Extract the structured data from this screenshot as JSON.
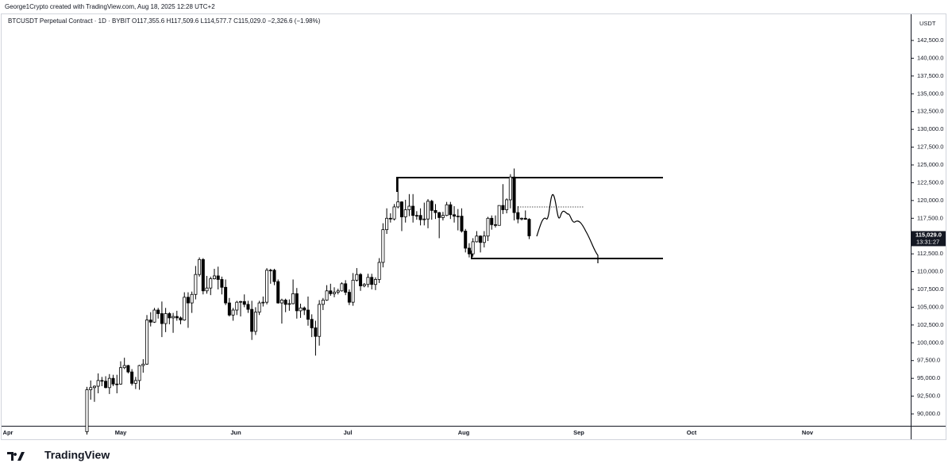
{
  "header": {
    "credit": "George1Crypto created with TradingView.com, Aug 18, 2025 12:28 UTC+2",
    "symbol": "BTCUSDT Perpetual Contract · 1D · BYBIT",
    "ohlc": "O117,355.6 H117,509.6 L114,577.7 C115,029.0 −2,326.6 (−1.98%)"
  },
  "chart_data": {
    "type": "candlestick",
    "y_axis_unit": "USDT",
    "ylim": [
      88330,
      146177
    ],
    "yticks": [
      {
        "value": 90000,
        "label": "90,000.0"
      },
      {
        "value": 92500,
        "label": "92,500.0"
      },
      {
        "value": 95000,
        "label": "95,000.0"
      },
      {
        "value": 97500,
        "label": "97,500.0"
      },
      {
        "value": 100000,
        "label": "100,000.0"
      },
      {
        "value": 102500,
        "label": "102,500.0"
      },
      {
        "value": 105000,
        "label": "105,000.0"
      },
      {
        "value": 107500,
        "label": "107,500.0"
      },
      {
        "value": 110000,
        "label": "110,000.0"
      },
      {
        "value": 112500,
        "label": "112,500.0"
      },
      {
        "value": 117500,
        "label": "117,500.0"
      },
      {
        "value": 120000,
        "label": "120,000.0"
      },
      {
        "value": 122500,
        "label": "122,500.0"
      },
      {
        "value": 125000,
        "label": "125,000.0"
      },
      {
        "value": 127500,
        "label": "127,500.0"
      },
      {
        "value": 130000,
        "label": "130,000.0"
      },
      {
        "value": 132500,
        "label": "132,500.0"
      },
      {
        "value": 135000,
        "label": "135,000.0"
      },
      {
        "value": 137500,
        "label": "137,500.0"
      },
      {
        "value": 140000,
        "label": "140,000.0"
      },
      {
        "value": 142500,
        "label": "142,500.0"
      }
    ],
    "x_labels": [
      "Apr",
      "May",
      "Jun",
      "Jul",
      "Aug",
      "Sep",
      "Oct",
      "Nov"
    ],
    "last_price": {
      "value": 115029.0,
      "label": "115,029.0"
    },
    "countdown": "13:31:27",
    "up_color": "#ffffff",
    "down_color": "#000000",
    "outline_color": "#000000",
    "candles": [
      [
        87500,
        93800,
        87100,
        93400
      ],
      [
        93400,
        94700,
        92000,
        93700
      ],
      [
        93700,
        94000,
        91700,
        93900
      ],
      [
        93900,
        95700,
        92900,
        94700
      ],
      [
        94700,
        95200,
        93900,
        94600
      ],
      [
        94600,
        95300,
        93600,
        93700
      ],
      [
        93700,
        95600,
        92800,
        95000
      ],
      [
        95000,
        95500,
        93900,
        94200
      ],
      [
        94200,
        95500,
        92900,
        94200
      ],
      [
        94200,
        97400,
        94100,
        96500
      ],
      [
        96500,
        97900,
        96300,
        96800
      ],
      [
        96800,
        96900,
        95700,
        95900
      ],
      [
        95900,
        96300,
        94000,
        94300
      ],
      [
        94300,
        95200,
        93500,
        94700
      ],
      [
        94700,
        96900,
        93400,
        96800
      ],
      [
        96800,
        97700,
        95800,
        97000
      ],
      [
        97000,
        103900,
        96900,
        103200
      ],
      [
        103200,
        104300,
        102300,
        102900
      ],
      [
        102900,
        104900,
        102800,
        104600
      ],
      [
        104600,
        104900,
        103400,
        104100
      ],
      [
        104100,
        105800,
        100800,
        102700
      ],
      [
        102700,
        104900,
        101500,
        104100
      ],
      [
        104100,
        104300,
        102600,
        103500
      ],
      [
        103500,
        104200,
        101400,
        103700
      ],
      [
        103700,
        104500,
        103100,
        103500
      ],
      [
        103500,
        103700,
        102600,
        103200
      ],
      [
        103200,
        107100,
        103100,
        106400
      ],
      [
        106400,
        107100,
        102100,
        105600
      ],
      [
        105600,
        107200,
        104200,
        106800
      ],
      [
        106800,
        110800,
        106100,
        109600
      ],
      [
        109600,
        112000,
        109300,
        111700
      ],
      [
        111700,
        111900,
        106800,
        107300
      ],
      [
        107300,
        109400,
        106900,
        107700
      ],
      [
        107700,
        109300,
        106700,
        109000
      ],
      [
        109000,
        110400,
        108900,
        109400
      ],
      [
        109400,
        110700,
        107500,
        108900
      ],
      [
        108900,
        109300,
        106800,
        107800
      ],
      [
        107800,
        108900,
        105300,
        105600
      ],
      [
        105600,
        106300,
        103700,
        103900
      ],
      [
        103900,
        104900,
        103100,
        104600
      ],
      [
        104600,
        105900,
        103900,
        105700
      ],
      [
        105700,
        105900,
        103700,
        105800
      ],
      [
        105800,
        106800,
        105000,
        105400
      ],
      [
        105400,
        105900,
        104200,
        104700
      ],
      [
        104700,
        105900,
        100400,
        101600
      ],
      [
        101600,
        105000,
        101100,
        104300
      ],
      [
        104300,
        105900,
        103900,
        105600
      ],
      [
        105600,
        106500,
        105100,
        105700
      ],
      [
        105700,
        110500,
        105400,
        110200
      ],
      [
        110200,
        110400,
        108300,
        110200
      ],
      [
        110200,
        110400,
        108100,
        108600
      ],
      [
        108600,
        108900,
        105500,
        105600
      ],
      [
        105600,
        106200,
        102700,
        106000
      ],
      [
        106000,
        106200,
        104300,
        105400
      ],
      [
        105400,
        106100,
        104500,
        105500
      ],
      [
        105500,
        108900,
        105400,
        106900
      ],
      [
        106900,
        107700,
        103400,
        104500
      ],
      [
        104500,
        105500,
        103500,
        104900
      ],
      [
        104900,
        105100,
        103900,
        104600
      ],
      [
        104600,
        106500,
        102400,
        103300
      ],
      [
        103300,
        104000,
        100800,
        102100
      ],
      [
        102100,
        103100,
        98200,
        100900
      ],
      [
        100900,
        106000,
        99600,
        105400
      ],
      [
        105400,
        106300,
        104600,
        106000
      ],
      [
        106000,
        108100,
        105900,
        107300
      ],
      [
        107300,
        108300,
        106600,
        106900
      ],
      [
        106900,
        107800,
        106400,
        107100
      ],
      [
        107100,
        107600,
        106800,
        107300
      ],
      [
        107300,
        108500,
        107200,
        108300
      ],
      [
        108300,
        108800,
        106700,
        107100
      ],
      [
        107100,
        107500,
        105300,
        105700
      ],
      [
        105700,
        109800,
        105200,
        108800
      ],
      [
        108800,
        110500,
        108600,
        109600
      ],
      [
        109600,
        109800,
        107300,
        108000
      ],
      [
        108000,
        108400,
        107800,
        108200
      ],
      [
        108200,
        109700,
        107800,
        109200
      ],
      [
        109200,
        109700,
        107500,
        108200
      ],
      [
        108200,
        109200,
        107400,
        108900
      ],
      [
        108900,
        111900,
        108400,
        111300
      ],
      [
        111300,
        116800,
        110600,
        115900
      ],
      [
        115900,
        118900,
        115300,
        117500
      ],
      [
        117500,
        118200,
        116900,
        117400
      ],
      [
        117400,
        119500,
        117200,
        119100
      ],
      [
        119100,
        123200,
        118900,
        119800
      ],
      [
        119800,
        119900,
        115700,
        117700
      ],
      [
        117700,
        120100,
        116900,
        118700
      ],
      [
        118700,
        120900,
        117800,
        119200
      ],
      [
        119200,
        120900,
        116900,
        117900
      ],
      [
        117900,
        118500,
        117300,
        117900
      ],
      [
        117900,
        118900,
        116500,
        117300
      ],
      [
        117300,
        119700,
        116500,
        117400
      ],
      [
        117400,
        120200,
        116100,
        119900
      ],
      [
        119900,
        120100,
        117300,
        118600
      ],
      [
        118600,
        119500,
        117400,
        118300
      ],
      [
        118300,
        118400,
        114700,
        117600
      ],
      [
        117600,
        118400,
        117200,
        117900
      ],
      [
        117900,
        119800,
        117800,
        119400
      ],
      [
        119400,
        119800,
        117400,
        118000
      ],
      [
        118000,
        119200,
        116900,
        117800
      ],
      [
        117800,
        118800,
        115800,
        117800
      ],
      [
        117800,
        118900,
        115500,
        115700
      ],
      [
        115700,
        116000,
        112700,
        113300
      ],
      [
        113300,
        114000,
        112000,
        112500
      ],
      [
        112500,
        114700,
        112100,
        114200
      ],
      [
        114200,
        115700,
        114100,
        115000
      ],
      [
        115000,
        115100,
        112700,
        114100
      ],
      [
        114100,
        115700,
        113400,
        115000
      ],
      [
        115000,
        117700,
        114300,
        117500
      ],
      [
        117500,
        117900,
        115900,
        116600
      ],
      [
        116600,
        117900,
        116200,
        116500
      ],
      [
        116500,
        119300,
        116500,
        119300
      ],
      [
        119300,
        122300,
        118100,
        118700
      ],
      [
        118700,
        120300,
        118200,
        120100
      ],
      [
        120100,
        123700,
        118900,
        123300
      ],
      [
        123300,
        124500,
        117200,
        118300
      ],
      [
        118300,
        119200,
        116800,
        117400
      ],
      [
        117400,
        117600,
        117200,
        117500
      ],
      [
        117500,
        118600,
        117300,
        117355.6
      ],
      [
        117355.6,
        117509.6,
        114577.7,
        115029.0
      ]
    ]
  },
  "footer": {
    "logo": "TradingView"
  }
}
